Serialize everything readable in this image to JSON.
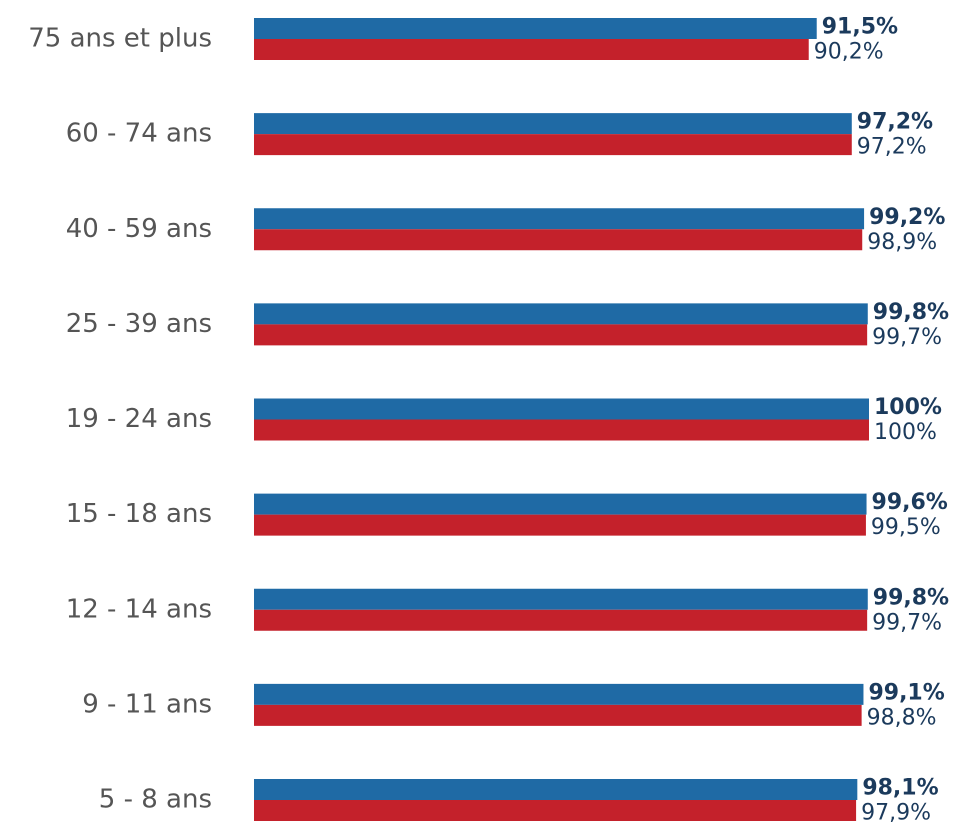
{
  "chart_data": {
    "type": "bar",
    "orientation": "horizontal",
    "categories": [
      "75 ans et plus",
      "60 - 74 ans",
      "40 - 59 ans",
      "25 - 39 ans",
      "19 - 24 ans",
      "15 - 18 ans",
      "12 - 14 ans",
      "9 - 11 ans",
      "5 - 8 ans"
    ],
    "series": [
      {
        "color": "#1f6aa5",
        "values": [
          91.5,
          97.2,
          99.2,
          99.8,
          100,
          99.6,
          99.8,
          99.1,
          98.1
        ],
        "value_labels": [
          "91,5%",
          "97,2%",
          "99,2%",
          "99,8%",
          "100%",
          "99,6%",
          "99,8%",
          "99,1%",
          "98,1%"
        ]
      },
      {
        "color": "#c4212b",
        "values": [
          90.2,
          97.2,
          98.9,
          99.7,
          100,
          99.5,
          99.7,
          98.8,
          97.9
        ],
        "value_labels": [
          "90,2%",
          "97,2%",
          "98,9%",
          "99,7%",
          "100%",
          "99,5%",
          "99,7%",
          "98,8%",
          "97,9%"
        ]
      }
    ],
    "xlim": [
      0,
      100
    ]
  }
}
